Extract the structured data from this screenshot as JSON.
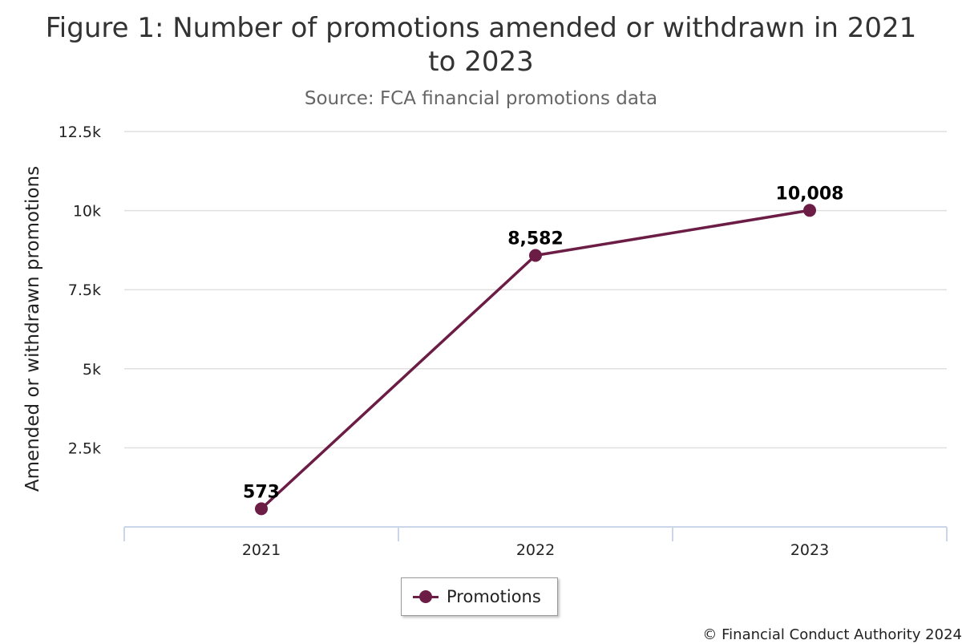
{
  "chart_data": {
    "type": "line",
    "title": "Figure 1: Number of promotions amended or withdrawn in 2021 to 2023",
    "subtitle": "Source: FCA financial promotions data",
    "xlabel": "",
    "ylabel": "Amended or withdrawn promotions",
    "categories": [
      "2021",
      "2022",
      "2023"
    ],
    "series": [
      {
        "name": "Promotions",
        "values": [
          573,
          8582,
          10008
        ],
        "data_labels": [
          "573",
          "8,582",
          "10,008"
        ],
        "color": "#6c1d45"
      }
    ],
    "ylim": [
      0,
      12500
    ],
    "yticks": [
      2500,
      5000,
      7500,
      10000,
      12500
    ],
    "ytick_labels": [
      "2.5k",
      "5k",
      "7.5k",
      "10k",
      "12.5k"
    ],
    "grid": true,
    "legend": "bottom-center"
  },
  "credit": "© Financial Conduct Authority 2024",
  "colors": {
    "series": "#6c1d45",
    "grid": "#e0e0e0",
    "axis": "#ccd6eb"
  }
}
